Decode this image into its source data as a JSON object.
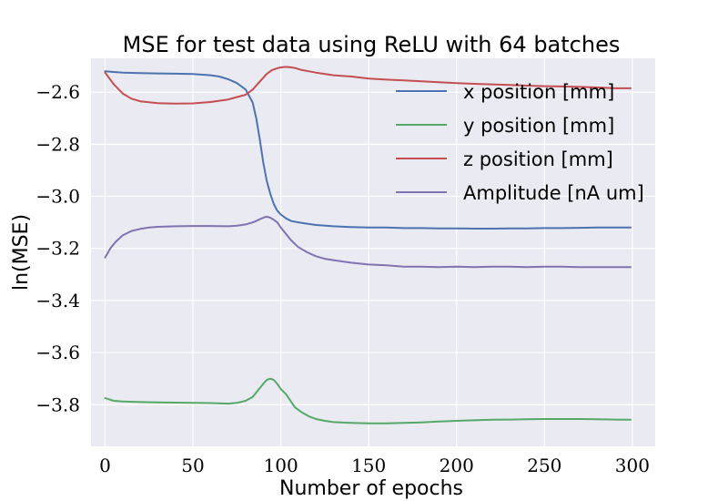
{
  "chart_data": {
    "type": "line",
    "title": "MSE for test data using ReLU with 64 batches",
    "xlabel": "Number of epochs",
    "ylabel": "ln(MSE)",
    "xlim": [
      -8,
      313
    ],
    "ylim": [
      -3.96,
      -2.47
    ],
    "xticks": [
      0,
      50,
      100,
      150,
      200,
      250,
      300
    ],
    "yticks": [
      -2.6,
      -2.8,
      -3.0,
      -3.2,
      -3.4,
      -3.6,
      -3.8
    ],
    "grid": true,
    "legend_position": "top-right",
    "background_color": "#eaeaf2",
    "series": [
      {
        "name": "x position [mm]",
        "color": "#4c72b0",
        "x": [
          0,
          10,
          20,
          30,
          40,
          50,
          60,
          65,
          70,
          75,
          80,
          84,
          86,
          88,
          90,
          92,
          94,
          96,
          98,
          100,
          103,
          106,
          110,
          115,
          120,
          130,
          140,
          150,
          160,
          170,
          180,
          190,
          200,
          210,
          220,
          230,
          240,
          250,
          260,
          270,
          280,
          290,
          299
        ],
        "y": [
          -2.52,
          -2.525,
          -2.527,
          -2.528,
          -2.529,
          -2.53,
          -2.535,
          -2.54,
          -2.55,
          -2.565,
          -2.59,
          -2.64,
          -2.7,
          -2.78,
          -2.87,
          -2.94,
          -2.99,
          -3.03,
          -3.055,
          -3.07,
          -3.085,
          -3.095,
          -3.1,
          -3.105,
          -3.11,
          -3.115,
          -3.118,
          -3.12,
          -3.12,
          -3.122,
          -3.122,
          -3.123,
          -3.123,
          -3.124,
          -3.124,
          -3.123,
          -3.123,
          -3.122,
          -3.122,
          -3.121,
          -3.12,
          -3.12,
          -3.12
        ]
      },
      {
        "name": "y position [mm]",
        "color": "#55a868",
        "x": [
          0,
          5,
          10,
          20,
          30,
          40,
          50,
          60,
          70,
          75,
          80,
          84,
          87,
          90,
          92,
          94,
          96,
          98,
          100,
          103,
          106,
          108,
          112,
          116,
          120,
          125,
          130,
          140,
          150,
          160,
          170,
          180,
          190,
          200,
          210,
          220,
          230,
          240,
          250,
          260,
          270,
          280,
          290,
          299
        ],
        "y": [
          -3.775,
          -3.785,
          -3.788,
          -3.79,
          -3.791,
          -3.792,
          -3.793,
          -3.794,
          -3.796,
          -3.793,
          -3.785,
          -3.77,
          -3.745,
          -3.72,
          -3.705,
          -3.7,
          -3.705,
          -3.72,
          -3.74,
          -3.76,
          -3.79,
          -3.81,
          -3.83,
          -3.845,
          -3.855,
          -3.862,
          -3.867,
          -3.87,
          -3.872,
          -3.872,
          -3.87,
          -3.868,
          -3.865,
          -3.862,
          -3.86,
          -3.858,
          -3.857,
          -3.856,
          -3.855,
          -3.855,
          -3.855,
          -3.856,
          -3.857,
          -3.858
        ]
      },
      {
        "name": "z position [mm]",
        "color": "#c44e52",
        "x": [
          0,
          5,
          10,
          15,
          20,
          30,
          40,
          50,
          60,
          70,
          80,
          84,
          88,
          92,
          95,
          98,
          100,
          103,
          106,
          108,
          112,
          116,
          120,
          130,
          140,
          150,
          160,
          170,
          180,
          190,
          200,
          210,
          220,
          230,
          240,
          250,
          260,
          270,
          280,
          290,
          299
        ],
        "y": [
          -2.525,
          -2.57,
          -2.605,
          -2.625,
          -2.635,
          -2.642,
          -2.644,
          -2.643,
          -2.638,
          -2.628,
          -2.61,
          -2.59,
          -2.56,
          -2.53,
          -2.515,
          -2.508,
          -2.505,
          -2.503,
          -2.505,
          -2.507,
          -2.515,
          -2.52,
          -2.525,
          -2.535,
          -2.54,
          -2.548,
          -2.552,
          -2.555,
          -2.558,
          -2.562,
          -2.565,
          -2.568,
          -2.57,
          -2.572,
          -2.575,
          -2.577,
          -2.578,
          -2.58,
          -2.582,
          -2.585,
          -2.585
        ]
      },
      {
        "name": "Amplitude [nA um]",
        "color": "#8172b2",
        "x": [
          0,
          3,
          6,
          10,
          15,
          20,
          25,
          30,
          40,
          50,
          60,
          70,
          75,
          80,
          85,
          88,
          90,
          92,
          94,
          96,
          98,
          100,
          103,
          106,
          110,
          115,
          120,
          125,
          130,
          140,
          150,
          160,
          170,
          180,
          190,
          200,
          210,
          220,
          230,
          240,
          250,
          260,
          270,
          280,
          290,
          299
        ],
        "y": [
          -3.235,
          -3.2,
          -3.175,
          -3.15,
          -3.133,
          -3.125,
          -3.12,
          -3.117,
          -3.115,
          -3.114,
          -3.114,
          -3.115,
          -3.113,
          -3.108,
          -3.098,
          -3.088,
          -3.082,
          -3.078,
          -3.082,
          -3.09,
          -3.1,
          -3.12,
          -3.145,
          -3.17,
          -3.195,
          -3.215,
          -3.23,
          -3.24,
          -3.245,
          -3.255,
          -3.262,
          -3.265,
          -3.27,
          -3.27,
          -3.272,
          -3.27,
          -3.272,
          -3.27,
          -3.27,
          -3.272,
          -3.27,
          -3.27,
          -3.272,
          -3.272,
          -3.272,
          -3.272
        ]
      }
    ]
  }
}
